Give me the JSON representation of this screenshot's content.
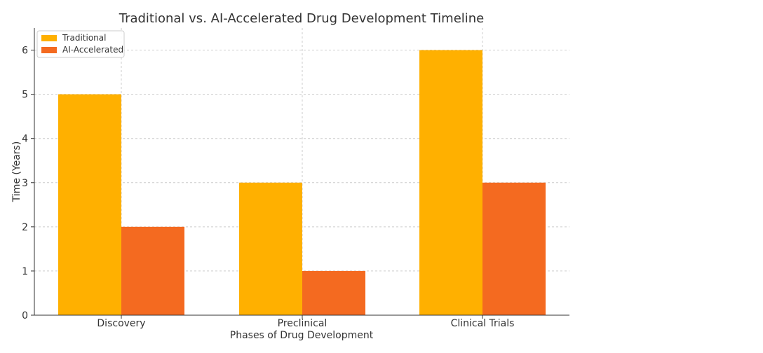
{
  "chart_data": {
    "type": "bar",
    "title": "Traditional vs. AI-Accelerated Drug Development Timeline",
    "xlabel": "Phases of Drug Development",
    "ylabel": "Time (Years)",
    "categories": [
      "Discovery",
      "Preclinical",
      "Clinical Trials"
    ],
    "series": [
      {
        "name": "Traditional",
        "values": [
          5,
          3,
          6
        ],
        "color": "#FFB000"
      },
      {
        "name": "AI-Accelerated",
        "values": [
          2,
          1,
          3
        ],
        "color": "#F46A20"
      }
    ],
    "ylim": [
      0,
      6.5
    ],
    "yticks": [
      0,
      1,
      2,
      3,
      4,
      5,
      6
    ],
    "grid": true,
    "legend_position": "top-left"
  }
}
